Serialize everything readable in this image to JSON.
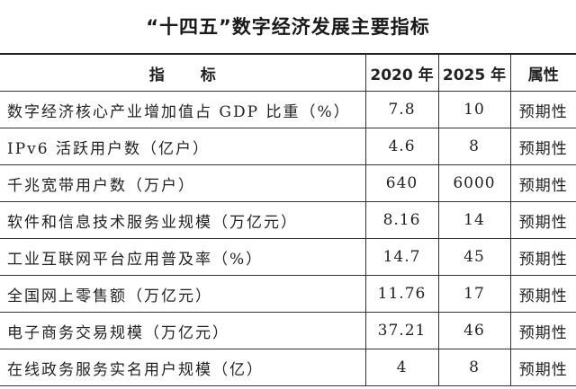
{
  "title": "“十四五”数字经济发展主要指标",
  "table": {
    "headers": [
      "指标",
      "2020 年",
      "2025 年",
      "属性"
    ],
    "rows": [
      {
        "indicator": "数字经济核心产业增加值占 GDP 比重（%）",
        "y2020": "7.8",
        "y2025": "10",
        "attribute": "预期性"
      },
      {
        "indicator": "IPv6 活跃用户数（亿户）",
        "y2020": "4.6",
        "y2025": "8",
        "attribute": "预期性"
      },
      {
        "indicator": "千兆宽带用户数（万户）",
        "y2020": "640",
        "y2025": "6000",
        "attribute": "预期性"
      },
      {
        "indicator": "软件和信息技术服务业规模（万亿元）",
        "y2020": "8.16",
        "y2025": "14",
        "attribute": "预期性"
      },
      {
        "indicator": "工业互联网平台应用普及率（%）",
        "y2020": "14.7",
        "y2025": "45",
        "attribute": "预期性"
      },
      {
        "indicator": "全国网上零售额（万亿元）",
        "y2020": "11.76",
        "y2025": "17",
        "attribute": "预期性"
      },
      {
        "indicator": "电子商务交易规模（万亿元）",
        "y2020": "37.21",
        "y2025": "46",
        "attribute": "预期性"
      },
      {
        "indicator": "在线政务服务实名用户规模（亿）",
        "y2020": "4",
        "y2025": "8",
        "attribute": "预期性"
      }
    ]
  }
}
